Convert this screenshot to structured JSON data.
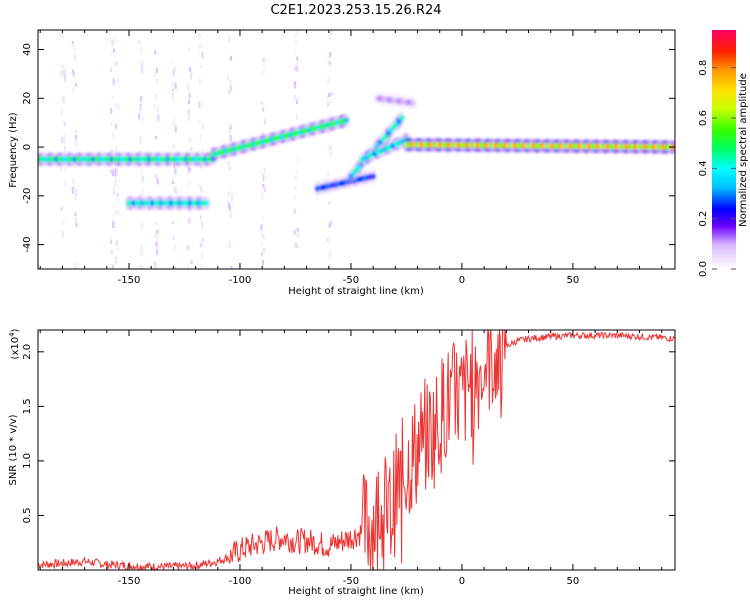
{
  "title": "C2E1.2023.253.15.26.R24",
  "chart_data": [
    {
      "type": "heatmap",
      "xlabel": "Height of straight line (km)",
      "ylabel": "Frequency (Hz)",
      "xlim": [
        -191,
        96
      ],
      "ylim": [
        -50,
        48
      ],
      "xticks": [
        -150,
        -100,
        -50,
        0,
        50
      ],
      "yticks": [
        -40,
        -20,
        0,
        20,
        40
      ],
      "colorbar": {
        "label": "Normalized spectral amplitude",
        "range": [
          0,
          0.95
        ],
        "ticks": [
          0.0,
          0.2,
          0.4,
          0.6,
          0.8
        ],
        "ticklabels": [
          "0.0",
          "0.2",
          "0.4",
          "0.6",
          "0.8"
        ]
      },
      "features": [
        {
          "x_start": -191,
          "x_end": -112,
          "y_start": -5,
          "y_end": -5,
          "amplitude": 0.5
        },
        {
          "x_start": -112,
          "x_end": -52,
          "y_start": -3,
          "y_end": 11,
          "amplitude": 0.55
        },
        {
          "x_start": -65,
          "x_end": -40,
          "y_start": -17,
          "y_end": -12,
          "amplitude": 0.3
        },
        {
          "x_start": -50,
          "x_end": -27,
          "y_start": -12,
          "y_end": 12,
          "amplitude": 0.45
        },
        {
          "x_start": -45,
          "x_end": -25,
          "y_start": -5,
          "y_end": 3,
          "amplitude": 0.45
        },
        {
          "x_start": -38,
          "x_end": -22,
          "y_start": 20,
          "y_end": 18,
          "amplitude": 0.12
        },
        {
          "x_start": -25,
          "x_end": 95,
          "y_start": 1,
          "y_end": 0,
          "amplitude": 0.8
        },
        {
          "x_start": -150,
          "x_end": -115,
          "y_start": -23,
          "y_end": -23,
          "amplitude": 0.45
        }
      ]
    },
    {
      "type": "line",
      "xlabel": "Height of straight line (km)",
      "ylabel": "SNR (10 * v/v)",
      "y_multiplier": "(x10",
      "y_multiplier_exp": "4",
      "y_multiplier_close": ")",
      "xlim": [
        -191,
        96
      ],
      "ylim": [
        0,
        2.2
      ],
      "xticks": [
        -150,
        -100,
        -50,
        0,
        50
      ],
      "yticks": [
        0.5,
        1.0,
        1.5,
        2.0
      ],
      "yticklabels": [
        "0.5",
        "1.0",
        "1.5",
        "2.0"
      ],
      "series": [
        {
          "color": "#ee3333",
          "x": [
            -191,
            -180,
            -170,
            -160,
            -150,
            -140,
            -130,
            -120,
            -110,
            -105,
            -100,
            -95,
            -90,
            -85,
            -80,
            -75,
            -70,
            -65,
            -60,
            -55,
            -50,
            -45,
            -40,
            -35,
            -32,
            -30,
            -28,
            -25,
            -22,
            -20,
            -18,
            -15,
            -12,
            -10,
            -8,
            -5,
            -2,
            0,
            3,
            5,
            8,
            10,
            12,
            15,
            18,
            20,
            25,
            30,
            40,
            50,
            60,
            70,
            80,
            90,
            96
          ],
          "y": [
            0.05,
            0.06,
            0.08,
            0.05,
            0.04,
            0.03,
            0.03,
            0.04,
            0.08,
            0.12,
            0.18,
            0.22,
            0.25,
            0.28,
            0.3,
            0.26,
            0.27,
            0.25,
            0.22,
            0.26,
            0.3,
            0.35,
            0.45,
            0.55,
            0.5,
            0.7,
            0.8,
            0.95,
            1.05,
            1.1,
            1.2,
            1.25,
            1.3,
            1.4,
            1.5,
            1.55,
            1.6,
            1.55,
            1.7,
            1.75,
            1.8,
            1.9,
            1.95,
            1.98,
            2.0,
            2.05,
            2.1,
            2.12,
            2.14,
            2.15,
            2.15,
            2.15,
            2.14,
            2.13,
            2.12
          ]
        }
      ]
    }
  ]
}
